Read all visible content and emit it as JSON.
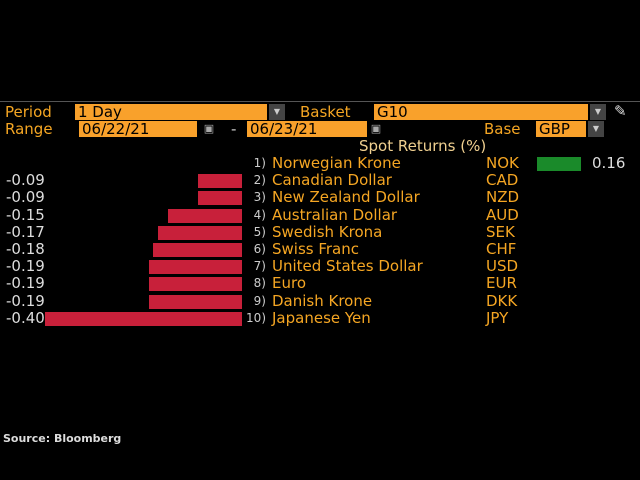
{
  "controls": {
    "period_label": "Period",
    "period_value": "1 Day",
    "basket_label": "Basket",
    "basket_value": "G10",
    "range_label": "Range",
    "range_start": "06/22/21",
    "range_sep": "-",
    "range_end": "06/23/21",
    "base_label": "Base",
    "base_value": "GBP"
  },
  "title": "Spot Returns (%)",
  "colors": {
    "negative": "#c8203a",
    "positive": "#1a8a2a"
  },
  "rows": [
    {
      "idx": "1)",
      "name": "Norwegian Krone",
      "code": "NOK",
      "value": 0.16,
      "label": "0.16"
    },
    {
      "idx": "2)",
      "name": "Canadian Dollar",
      "code": "CAD",
      "value": -0.09,
      "label": "-0.09"
    },
    {
      "idx": "3)",
      "name": "New Zealand Dollar",
      "code": "NZD",
      "value": -0.09,
      "label": "-0.09"
    },
    {
      "idx": "4)",
      "name": "Australian Dollar",
      "code": "AUD",
      "value": -0.15,
      "label": "-0.15"
    },
    {
      "idx": "5)",
      "name": "Swedish Krona",
      "code": "SEK",
      "value": -0.17,
      "label": "-0.17"
    },
    {
      "idx": "6)",
      "name": "Swiss Franc",
      "code": "CHF",
      "value": -0.18,
      "label": "-0.18"
    },
    {
      "idx": "7)",
      "name": "United States Dollar",
      "code": "USD",
      "value": -0.19,
      "label": "-0.19"
    },
    {
      "idx": "8)",
      "name": "Euro",
      "code": "EUR",
      "value": -0.19,
      "label": "-0.19"
    },
    {
      "idx": "9)",
      "name": "Danish Krone",
      "code": "DKK",
      "value": -0.19,
      "label": "-0.19"
    },
    {
      "idx": "10)",
      "name": "Japanese Yen",
      "code": "JPY",
      "value": -0.4,
      "label": "-0.40"
    }
  ],
  "source": "Source: Bloomberg"
}
